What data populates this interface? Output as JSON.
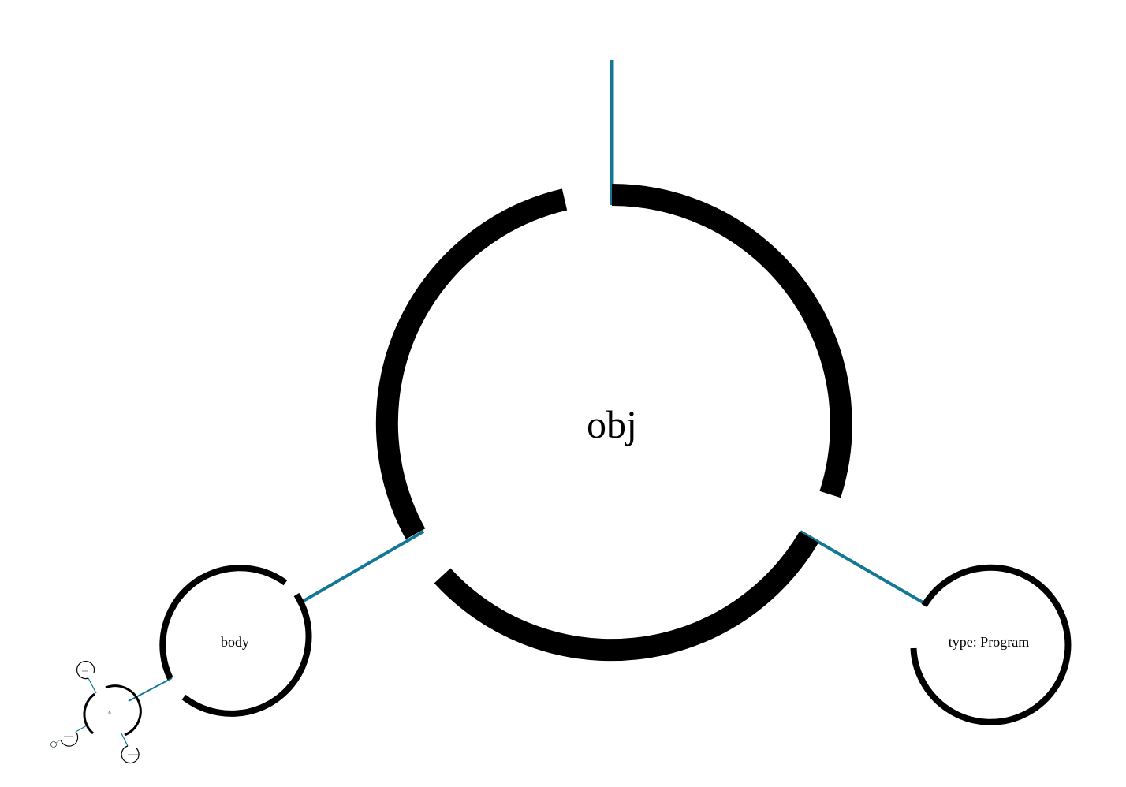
{
  "colors": {
    "ring": "#000000",
    "link": "#127896",
    "background": "#ffffff"
  },
  "nodes": {
    "root": {
      "label": "obj"
    },
    "body": {
      "label": "body"
    },
    "type": {
      "label": "type: Program"
    },
    "body_item": {
      "label": "0"
    },
    "item_child_a": {
      "label": ""
    },
    "item_child_b": {
      "label": ""
    },
    "item_child_c": {
      "label": ""
    },
    "item_grandchild": {
      "label": ""
    }
  }
}
